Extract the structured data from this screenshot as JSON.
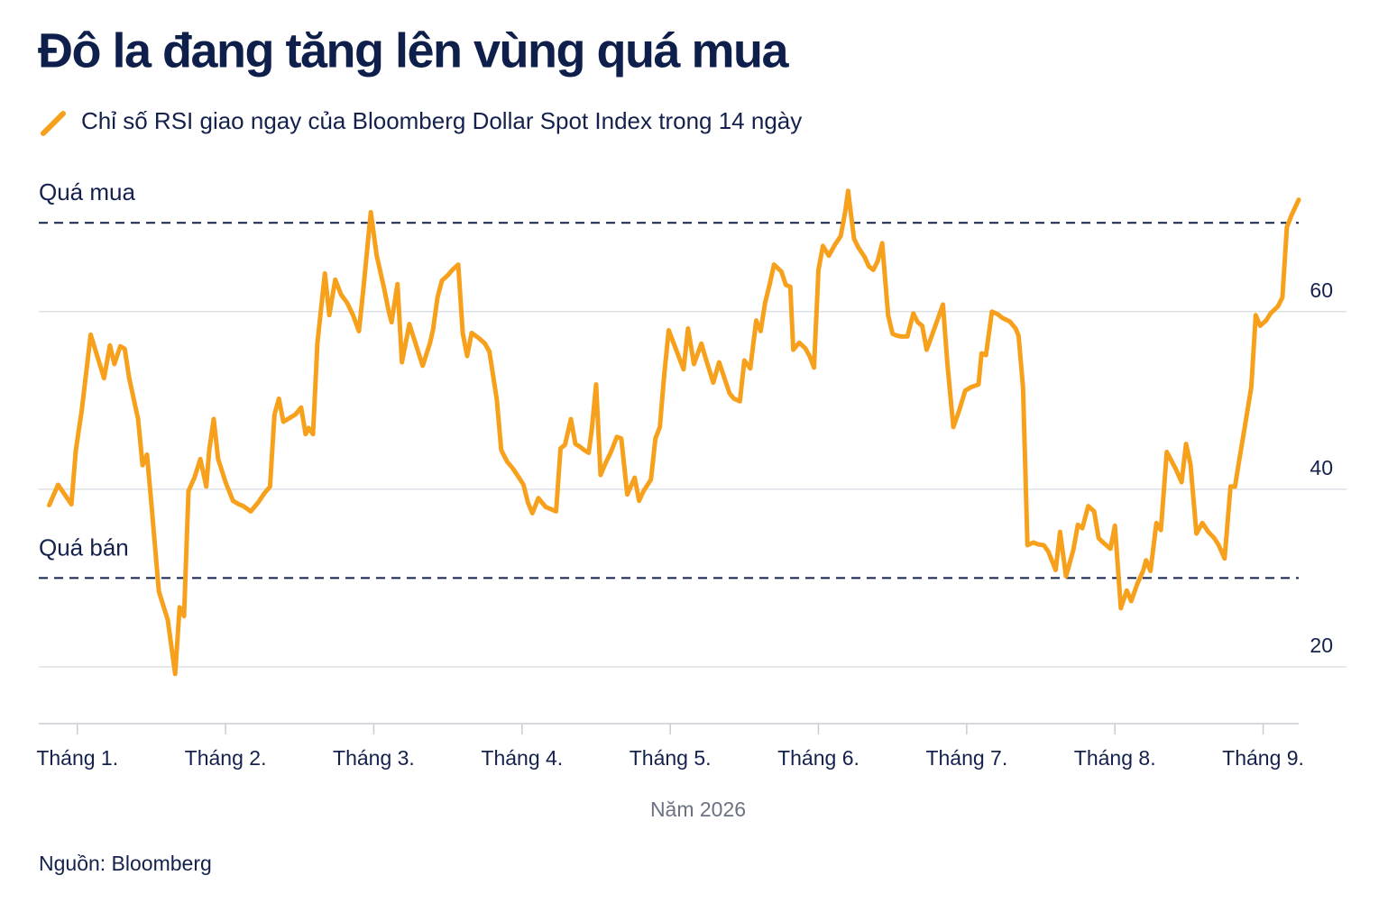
{
  "chart_data": {
    "type": "line",
    "title": "Đô la đang tăng lên vùng quá mua",
    "x_label": "Năm 2026",
    "source": "Nguồn: Bloomberg",
    "xlim": [
      0.74,
      9.24
    ],
    "xticks": [
      {
        "value": 1,
        "label": "Tháng 1."
      },
      {
        "value": 2,
        "label": "Tháng 2."
      },
      {
        "value": 3,
        "label": "Tháng 3."
      },
      {
        "value": 4,
        "label": "Tháng 4."
      },
      {
        "value": 5,
        "label": "Tháng 5."
      },
      {
        "value": 6,
        "label": "Tháng 6."
      },
      {
        "value": 7,
        "label": "Tháng 7."
      },
      {
        "value": 8,
        "label": "Tháng 8."
      },
      {
        "value": 9,
        "label": "Tháng 9."
      }
    ],
    "ylim": [
      13.5,
      75
    ],
    "yticks": [
      20,
      40,
      60
    ],
    "grid": true,
    "reference_lines": [
      {
        "value": 70,
        "label": "Quá mua"
      },
      {
        "value": 30,
        "label": "Quá bán"
      }
    ],
    "series": [
      {
        "name": "Chỉ số RSI giao ngay của Bloomberg Dollar Spot Index trong 14 ngày",
        "color": "#f7a01c",
        "x": [
          0.81,
          0.87,
          0.96,
          0.99,
          1.03,
          1.09,
          1.14,
          1.18,
          1.22,
          1.25,
          1.29,
          1.32,
          1.35,
          1.41,
          1.44,
          1.47,
          1.5,
          1.55,
          1.58,
          1.61,
          1.66,
          1.69,
          1.72,
          1.75,
          1.79,
          1.83,
          1.87,
          1.89,
          1.92,
          1.95,
          2.0,
          2.05,
          2.09,
          2.12,
          2.17,
          2.22,
          2.26,
          2.3,
          2.33,
          2.36,
          2.39,
          2.43,
          2.47,
          2.51,
          2.54,
          2.56,
          2.59,
          2.62,
          2.67,
          2.7,
          2.74,
          2.78,
          2.82,
          2.86,
          2.9,
          2.93,
          2.98,
          3.02,
          3.07,
          3.1,
          3.12,
          3.16,
          3.19,
          3.24,
          3.28,
          3.33,
          3.38,
          3.4,
          3.43,
          3.46,
          3.5,
          3.53,
          3.57,
          3.6,
          3.63,
          3.66,
          3.71,
          3.75,
          3.78,
          3.83,
          3.86,
          3.9,
          3.94,
          3.98,
          4.01,
          4.04,
          4.07,
          4.11,
          4.16,
          4.19,
          4.23,
          4.26,
          4.29,
          4.33,
          4.36,
          4.39,
          4.42,
          4.45,
          4.47,
          4.5,
          4.53,
          4.56,
          4.6,
          4.64,
          4.67,
          4.71,
          4.76,
          4.79,
          4.82,
          4.87,
          4.9,
          4.93,
          4.96,
          4.99,
          5.04,
          5.09,
          5.12,
          5.16,
          5.21,
          5.24,
          5.29,
          5.33,
          5.36,
          5.4,
          5.43,
          5.47,
          5.5,
          5.54,
          5.58,
          5.61,
          5.64,
          5.67,
          5.7,
          5.75,
          5.78,
          5.81,
          5.83,
          5.87,
          5.91,
          5.94,
          5.97,
          6.0,
          6.03,
          6.07,
          6.11,
          6.15,
          6.18,
          6.2,
          6.24,
          6.27,
          6.31,
          6.34,
          6.37,
          6.4,
          6.43,
          6.47,
          6.5,
          6.53,
          6.56,
          6.6,
          6.64,
          6.67,
          6.7,
          6.73,
          6.78,
          6.81,
          6.84,
          6.87,
          6.91,
          6.95,
          6.99,
          7.03,
          7.08,
          7.1,
          7.13,
          7.17,
          7.21,
          7.24,
          7.29,
          7.33,
          7.35,
          7.38,
          7.41,
          7.45,
          7.48,
          7.52,
          7.55,
          7.6,
          7.63,
          7.67,
          7.72,
          7.75,
          7.78,
          7.82,
          7.86,
          7.89,
          7.92,
          7.97,
          8.0,
          8.04,
          8.08,
          8.11,
          8.15,
          8.19,
          8.21,
          8.24,
          8.28,
          8.31,
          8.35,
          8.41,
          8.45,
          8.48,
          8.51,
          8.55,
          8.59,
          8.63,
          8.67,
          8.7,
          8.74,
          8.78,
          8.81,
          8.84,
          8.88,
          8.92,
          8.95,
          8.98,
          9.02,
          9.05,
          9.1,
          9.13,
          9.16,
          9.19,
          9.24
        ],
        "values": [
          38.2,
          40.5,
          38.3,
          44.4,
          48.9,
          57.4,
          54.7,
          52.5,
          56.2,
          54.1,
          56.1,
          55.8,
          52.5,
          47.9,
          42.7,
          43.9,
          38.3,
          28.5,
          26.9,
          25.3,
          19.2,
          26.7,
          25.7,
          39.8,
          41.3,
          43.4,
          40.3,
          44.4,
          47.9,
          43.4,
          40.8,
          38.7,
          38.3,
          38.1,
          37.5,
          38.5,
          39.5,
          40.3,
          48.4,
          50.2,
          47.6,
          48.0,
          48.4,
          49.2,
          46.2,
          46.9,
          46.2,
          56.5,
          64.3,
          59.6,
          63.6,
          61.9,
          61.0,
          59.6,
          57.8,
          62.6,
          71.2,
          66.3,
          62.6,
          60.1,
          58.8,
          63.1,
          54.3,
          58.6,
          56.5,
          53.9,
          56.5,
          58.0,
          61.6,
          63.5,
          64.1,
          64.7,
          65.3,
          57.6,
          55.0,
          57.6,
          57.0,
          56.4,
          55.5,
          50.1,
          44.4,
          43.1,
          42.3,
          41.3,
          40.5,
          38.5,
          37.3,
          39.0,
          38.0,
          37.8,
          37.5,
          44.6,
          45.0,
          47.9,
          45.1,
          44.8,
          44.4,
          44.1,
          46.6,
          51.8,
          41.6,
          42.8,
          44.2,
          45.9,
          45.7,
          39.4,
          41.3,
          38.7,
          39.8,
          41.1,
          45.7,
          47.0,
          53.0,
          57.9,
          55.7,
          53.5,
          58.1,
          54.1,
          56.4,
          54.7,
          52.0,
          54.3,
          52.8,
          50.8,
          50.2,
          49.9,
          54.5,
          53.6,
          59.0,
          57.8,
          61.0,
          63.0,
          65.3,
          64.5,
          63.0,
          62.8,
          55.7,
          56.5,
          55.9,
          55.0,
          53.7,
          64.7,
          67.4,
          66.3,
          67.5,
          68.5,
          71.2,
          73.6,
          68.2,
          67.2,
          66.2,
          65.1,
          64.7,
          65.7,
          67.7,
          59.6,
          57.5,
          57.3,
          57.2,
          57.2,
          59.8,
          58.8,
          58.4,
          55.7,
          58.0,
          59.4,
          60.8,
          54.1,
          47.0,
          48.9,
          51.1,
          51.5,
          51.8,
          55.3,
          55.1,
          60.0,
          59.7,
          59.3,
          58.9,
          58.1,
          57.3,
          51.5,
          33.7,
          34.0,
          33.8,
          33.7,
          33.0,
          30.9,
          35.2,
          30.2,
          33.2,
          36.0,
          35.6,
          38.1,
          37.5,
          34.5,
          34.0,
          33.3,
          35.9,
          26.6,
          28.6,
          27.4,
          29.3,
          30.8,
          32.0,
          30.8,
          36.2,
          35.4,
          44.2,
          42.3,
          40.8,
          45.1,
          42.8,
          35.0,
          36.2,
          35.2,
          34.5,
          33.7,
          32.2,
          40.3,
          40.3,
          43.4,
          47.4,
          51.5,
          59.6,
          58.4,
          59.0,
          59.8,
          60.6,
          61.6,
          69.5,
          70.8,
          72.6
        ]
      }
    ]
  }
}
